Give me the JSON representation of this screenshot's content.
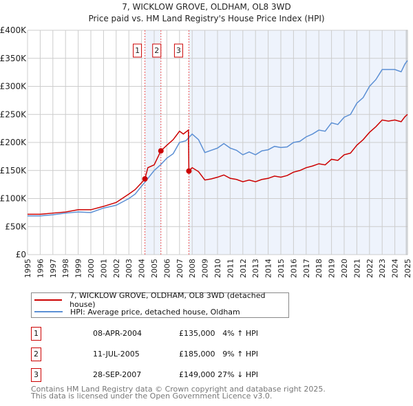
{
  "chart_data": {
    "type": "line",
    "title": "7, WICKLOW GROVE, OLDHAM, OL8 3WD",
    "subtitle": "Price paid vs. HM Land Registry's House Price Index (HPI)",
    "xlim": [
      1995,
      2025
    ],
    "ylim": [
      0,
      400000
    ],
    "yticks": [
      0,
      50000,
      100000,
      150000,
      200000,
      250000,
      300000,
      350000,
      400000
    ],
    "ytick_labels": [
      "£0",
      "£50K",
      "£100K",
      "£150K",
      "£200K",
      "£250K",
      "£300K",
      "£350K",
      "£400K"
    ],
    "xticks": [
      1995,
      1996,
      1997,
      1998,
      1999,
      2000,
      2001,
      2002,
      2003,
      2004,
      2005,
      2006,
      2007,
      2008,
      2009,
      2010,
      2011,
      2012,
      2013,
      2014,
      2015,
      2016,
      2017,
      2018,
      2019,
      2020,
      2021,
      2022,
      2023,
      2024,
      2025
    ],
    "grid": true,
    "series": [
      {
        "name": "7, WICKLOW GROVE, OLDHAM, OL8 3WD (detached house)",
        "color": "#cc0000",
        "x": [
          1995,
          1996,
          1997,
          1998,
          1999,
          2000,
          2001,
          2002,
          2003,
          2003.5,
          2004,
          2004.27,
          2004.5,
          2005,
          2005.53,
          2006,
          2006.5,
          2007,
          2007.3,
          2007.7,
          2007.74,
          2008,
          2008.5,
          2009,
          2009.5,
          2010,
          2010.5,
          2011,
          2011.5,
          2012,
          2012.5,
          2013,
          2013.5,
          2014,
          2014.5,
          2015,
          2015.5,
          2016,
          2016.5,
          2017,
          2017.5,
          2018,
          2018.5,
          2019,
          2019.5,
          2020,
          2020.5,
          2021,
          2021.5,
          2022,
          2022.5,
          2023,
          2023.5,
          2024,
          2024.5,
          2024.8,
          2025
        ],
        "y": [
          72000,
          72000,
          74000,
          76000,
          80000,
          80000,
          86000,
          93000,
          108000,
          116000,
          128000,
          135000,
          155000,
          160000,
          185000,
          195000,
          205000,
          220000,
          215000,
          222000,
          149000,
          155000,
          148000,
          133000,
          135000,
          138000,
          142000,
          136000,
          134000,
          130000,
          133000,
          130000,
          134000,
          136000,
          140000,
          138000,
          141000,
          147000,
          150000,
          155000,
          158000,
          162000,
          160000,
          170000,
          168000,
          178000,
          181000,
          195000,
          205000,
          218000,
          228000,
          240000,
          238000,
          240000,
          237000,
          246000,
          250000
        ]
      },
      {
        "name": "HPI: Average price, detached house, Oldham",
        "color": "#5b8fd4",
        "x": [
          1995,
          1996,
          1997,
          1998,
          1999,
          2000,
          2001,
          2002,
          2003,
          2003.5,
          2004,
          2004.3,
          2005,
          2005.5,
          2006,
          2006.5,
          2007,
          2007.5,
          2008,
          2008.5,
          2009,
          2009.5,
          2010,
          2010.5,
          2011,
          2011.5,
          2012,
          2012.5,
          2013,
          2013.5,
          2014,
          2014.5,
          2015,
          2015.5,
          2016,
          2016.5,
          2017,
          2017.5,
          2018,
          2018.5,
          2019,
          2019.5,
          2020,
          2020.5,
          2021,
          2021.5,
          2022,
          2022.5,
          2023,
          2023.5,
          2024,
          2024.5,
          2024.8,
          2025
        ],
        "y": [
          69000,
          69000,
          71000,
          74000,
          76000,
          75000,
          83000,
          88000,
          100000,
          108000,
          122000,
          130000,
          150000,
          160000,
          172000,
          180000,
          200000,
          203000,
          215000,
          205000,
          182000,
          186000,
          190000,
          198000,
          190000,
          186000,
          178000,
          183000,
          178000,
          185000,
          187000,
          193000,
          191000,
          192000,
          200000,
          202000,
          210000,
          215000,
          222000,
          220000,
          235000,
          232000,
          245000,
          250000,
          270000,
          280000,
          300000,
          312000,
          330000,
          330000,
          330000,
          326000,
          340000,
          346000
        ]
      }
    ],
    "sales": [
      {
        "label": "1",
        "x": 2004.27,
        "price": 135000,
        "date": "08-APR-2004",
        "price_text": "£135,000",
        "hpi": "4% ↑ HPI"
      },
      {
        "label": "2",
        "x": 2005.53,
        "price": 185000,
        "date": "11-JUL-2005",
        "price_text": "£185,000",
        "hpi": "9% ↑ HPI"
      },
      {
        "label": "3",
        "x": 2007.74,
        "price": 149000,
        "date": "28-SEP-2007",
        "price_text": "£149,000",
        "hpi": "27% ↓ HPI"
      }
    ],
    "shaded": [
      [
        2004.27,
        2005.53
      ],
      [
        2007.74,
        2025
      ]
    ]
  },
  "legend": {
    "property": "7, WICKLOW GROVE, OLDHAM, OL8 3WD (detached house)",
    "hpi": "HPI: Average price, detached house, Oldham"
  },
  "footer": {
    "line1": "Contains HM Land Registry data © Crown copyright and database right 2025.",
    "line2": "This data is licensed under the Open Government Licence v3.0."
  }
}
